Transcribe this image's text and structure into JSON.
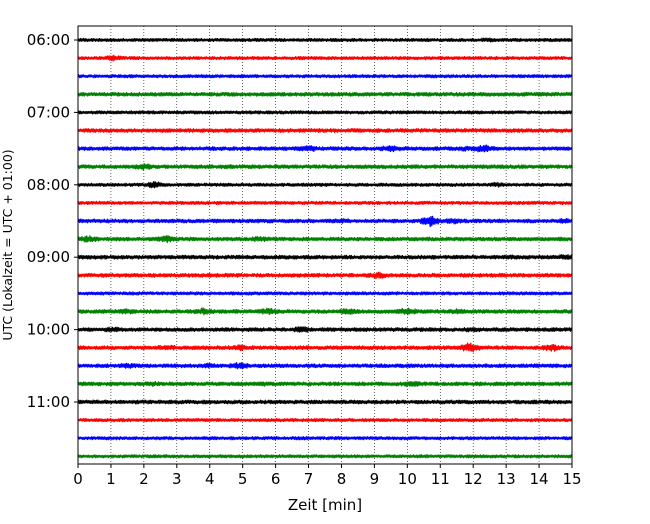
{
  "chart_data": {
    "type": "line",
    "title": "",
    "xlabel": "Zeit  [min]",
    "ylabel": "UTC (Lokalzeit = UTC + 01:00)",
    "xlim": [
      0,
      15
    ],
    "x_ticks": [
      0,
      1,
      2,
      3,
      4,
      5,
      6,
      7,
      8,
      9,
      10,
      11,
      12,
      13,
      14,
      15
    ],
    "grid": "vertical dotted lines at each minute",
    "y_ticks": [
      {
        "label": "06:00",
        "trace_index": 0
      },
      {
        "label": "07:00",
        "trace_index": 4
      },
      {
        "label": "08:00",
        "trace_index": 8
      },
      {
        "label": "09:00",
        "trace_index": 12
      },
      {
        "label": "10:00",
        "trace_index": 16
      },
      {
        "label": "11:00",
        "trace_index": 20
      }
    ],
    "color_cycle": [
      "#000000",
      "#ff0000",
      "#0000ff",
      "#008000"
    ],
    "traces": [
      {
        "start": "06:00",
        "color": "#000000",
        "amplitude": 0.25,
        "bursts": [
          [
            12.5,
            0.35
          ]
        ]
      },
      {
        "start": "06:15",
        "color": "#ff0000",
        "amplitude": 0.25,
        "bursts": [
          [
            1.1,
            0.5
          ]
        ]
      },
      {
        "start": "06:30",
        "color": "#0000ff",
        "amplitude": 0.25,
        "bursts": []
      },
      {
        "start": "06:45",
        "color": "#008000",
        "amplitude": 0.3,
        "bursts": []
      },
      {
        "start": "07:00",
        "color": "#000000",
        "amplitude": 0.25,
        "bursts": [
          [
            9.2,
            0.3
          ]
        ]
      },
      {
        "start": "07:15",
        "color": "#ff0000",
        "amplitude": 0.3,
        "bursts": []
      },
      {
        "start": "07:30",
        "color": "#0000ff",
        "amplitude": 0.3,
        "bursts": [
          [
            7.0,
            0.6
          ],
          [
            9.5,
            0.6
          ],
          [
            12.3,
            0.7
          ],
          [
            11.8,
            0.45
          ]
        ]
      },
      {
        "start": "07:45",
        "color": "#008000",
        "amplitude": 0.3,
        "bursts": [
          [
            2.0,
            0.55
          ],
          [
            4.6,
            0.35
          ]
        ]
      },
      {
        "start": "08:00",
        "color": "#000000",
        "amplitude": 0.25,
        "bursts": [
          [
            2.3,
            0.6
          ],
          [
            12.7,
            0.4
          ]
        ]
      },
      {
        "start": "08:15",
        "color": "#ff0000",
        "amplitude": 0.25,
        "bursts": []
      },
      {
        "start": "08:30",
        "color": "#0000ff",
        "amplitude": 0.3,
        "bursts": [
          [
            8.0,
            0.45
          ],
          [
            10.7,
            1.0
          ],
          [
            11.4,
            0.5
          ],
          [
            14.8,
            0.45
          ]
        ]
      },
      {
        "start": "08:45",
        "color": "#008000",
        "amplitude": 0.3,
        "bursts": [
          [
            0.3,
            0.6
          ],
          [
            1.3,
            0.35
          ],
          [
            2.7,
            0.6
          ],
          [
            5.5,
            0.45
          ]
        ]
      },
      {
        "start": "09:00",
        "color": "#000000",
        "amplitude": 0.3,
        "bursts": [
          [
            13.2,
            0.35
          ],
          [
            14.8,
            0.45
          ]
        ]
      },
      {
        "start": "09:15",
        "color": "#ff0000",
        "amplitude": 0.3,
        "bursts": [
          [
            9.1,
            0.6
          ],
          [
            10.6,
            0.3
          ]
        ]
      },
      {
        "start": "09:30",
        "color": "#0000ff",
        "amplitude": 0.25,
        "bursts": []
      },
      {
        "start": "09:45",
        "color": "#008000",
        "amplitude": 0.3,
        "bursts": [
          [
            1.4,
            0.5
          ],
          [
            3.8,
            0.6
          ],
          [
            5.8,
            0.6
          ],
          [
            8.2,
            0.55
          ],
          [
            10.0,
            0.65
          ],
          [
            11.5,
            0.45
          ]
        ]
      },
      {
        "start": "10:00",
        "color": "#000000",
        "amplitude": 0.3,
        "bursts": [
          [
            1.1,
            0.45
          ],
          [
            6.8,
            0.55
          ],
          [
            12.0,
            0.4
          ]
        ]
      },
      {
        "start": "10:15",
        "color": "#ff0000",
        "amplitude": 0.3,
        "bursts": [
          [
            2.7,
            0.5
          ],
          [
            4.9,
            0.5
          ],
          [
            11.9,
            0.9
          ],
          [
            14.4,
            0.65
          ]
        ]
      },
      {
        "start": "10:30",
        "color": "#0000ff",
        "amplitude": 0.3,
        "bursts": [
          [
            1.5,
            0.45
          ],
          [
            4.0,
            0.45
          ],
          [
            4.9,
            0.6
          ]
        ]
      },
      {
        "start": "10:45",
        "color": "#008000",
        "amplitude": 0.3,
        "bursts": [
          [
            2.2,
            0.45
          ],
          [
            5.6,
            0.4
          ],
          [
            10.1,
            0.5
          ]
        ]
      },
      {
        "start": "11:00",
        "color": "#000000",
        "amplitude": 0.3,
        "bursts": [
          [
            0.6,
            0.35
          ],
          [
            8.0,
            0.3
          ]
        ]
      },
      {
        "start": "11:15",
        "color": "#ff0000",
        "amplitude": 0.25,
        "bursts": []
      },
      {
        "start": "11:30",
        "color": "#0000ff",
        "amplitude": 0.25,
        "bursts": []
      },
      {
        "start": "11:45",
        "color": "#008000",
        "amplitude": 0.25,
        "bursts": []
      }
    ]
  }
}
